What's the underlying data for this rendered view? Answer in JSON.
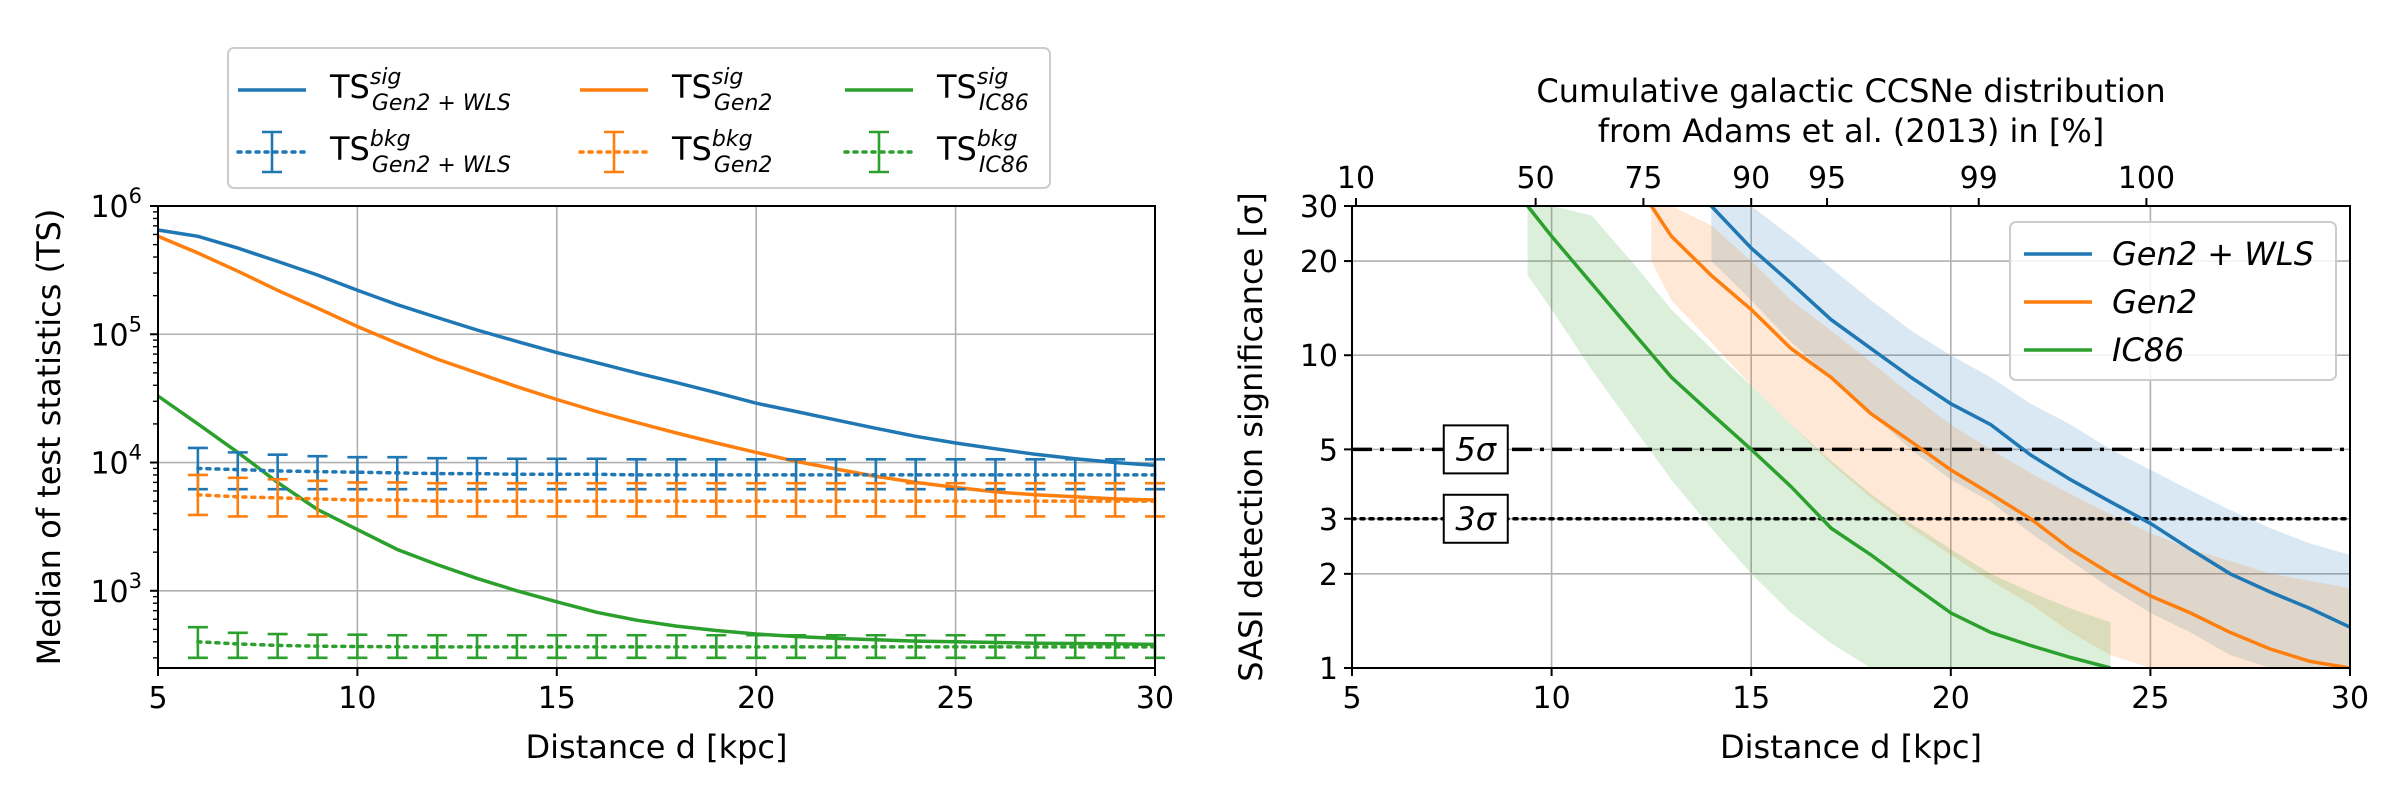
{
  "chart_data": [
    {
      "type": "line",
      "xlabel": "Distance d [kpc]",
      "ylabel": "Median of test statistics (TS)",
      "xlim": [
        5,
        30
      ],
      "ylim": [
        250,
        1000000
      ],
      "yscale": "log",
      "grid": true,
      "legend_position": "top, above plot, 3 columns",
      "x_ticks": [
        5,
        10,
        15,
        20,
        25,
        30
      ],
      "y_ticks": [
        {
          "value": 1000,
          "base": "10",
          "exp": "3"
        },
        {
          "value": 10000,
          "base": "10",
          "exp": "4"
        },
        {
          "value": 100000,
          "base": "10",
          "exp": "5"
        },
        {
          "value": 1000000,
          "base": "10",
          "exp": "6"
        }
      ],
      "x": [
        5,
        10,
        15,
        20,
        25,
        30
      ],
      "series": [
        {
          "name": "TS sig Gen2+WLS",
          "legend": {
            "main": "TS",
            "sup": "sig",
            "sub": "Gen2 + WLS"
          },
          "style": "solid",
          "color": "#1f77b4",
          "x": [
            5,
            6,
            7,
            8,
            9,
            10,
            11,
            12,
            13,
            14,
            15,
            16,
            17,
            18,
            19,
            20,
            21,
            22,
            23,
            24,
            25,
            26,
            27,
            28,
            29,
            30
          ],
          "values": [
            650000,
            580000,
            470000,
            370000,
            290000,
            220000,
            170000,
            135000,
            108000,
            88000,
            72000,
            60000,
            50000,
            42000,
            35000,
            29000,
            25000,
            21500,
            18500,
            16000,
            14200,
            12800,
            11600,
            10700,
            10000,
            9500
          ]
        },
        {
          "name": "TS sig Gen2",
          "legend": {
            "main": "TS",
            "sup": "sig",
            "sub": "Gen2"
          },
          "style": "solid",
          "color": "#ff7f0e",
          "x": [
            5,
            6,
            7,
            8,
            9,
            10,
            11,
            12,
            13,
            14,
            15,
            16,
            17,
            18,
            19,
            20,
            21,
            22,
            23,
            24,
            25,
            26,
            27,
            28,
            29,
            30
          ],
          "values": [
            580000,
            430000,
            310000,
            220000,
            160000,
            115000,
            85000,
            64000,
            50000,
            39000,
            31000,
            25000,
            20500,
            17000,
            14200,
            12000,
            10200,
            8900,
            7800,
            7000,
            6400,
            5900,
            5600,
            5400,
            5200,
            5100
          ]
        },
        {
          "name": "TS sig IC86",
          "legend": {
            "main": "TS",
            "sup": "sig",
            "sub": "IC86"
          },
          "style": "solid",
          "color": "#2ca02c",
          "x": [
            5,
            6,
            7,
            8,
            9,
            10,
            11,
            12,
            13,
            14,
            15,
            16,
            17,
            18,
            19,
            20,
            21,
            22,
            23,
            24,
            25,
            26,
            27,
            28,
            29,
            30
          ],
          "values": [
            33000,
            20000,
            12000,
            7000,
            4300,
            3000,
            2100,
            1600,
            1250,
            1000,
            820,
            680,
            590,
            530,
            490,
            460,
            440,
            425,
            415,
            405,
            400,
            395,
            390,
            388,
            385,
            382
          ]
        },
        {
          "name": "TS bkg Gen2+WLS",
          "legend": {
            "main": "TS",
            "sup": "bkg",
            "sub": "Gen2 + WLS"
          },
          "style": "dotted",
          "errorbars": true,
          "color": "#1f77b4",
          "x": [
            6,
            7,
            8,
            9,
            10,
            11,
            12,
            13,
            14,
            15,
            16,
            17,
            18,
            19,
            20,
            21,
            22,
            23,
            24,
            25,
            26,
            27,
            28,
            29,
            30
          ],
          "values": [
            9000,
            8800,
            8600,
            8500,
            8400,
            8300,
            8200,
            8200,
            8100,
            8100,
            8100,
            8000,
            8000,
            8000,
            8000,
            8000,
            8000,
            8000,
            8000,
            8000,
            8000,
            8000,
            8000,
            8000,
            8000
          ],
          "err_low": [
            6200,
            6200,
            6200,
            6200,
            6200,
            6200,
            6200,
            6200,
            6200,
            6200,
            6200,
            6200,
            6200,
            6200,
            6200,
            6200,
            6200,
            6200,
            6200,
            6200,
            6200,
            6200,
            6200,
            6200,
            6200
          ],
          "err_high": [
            13000,
            12000,
            11500,
            11200,
            11000,
            11000,
            10800,
            10800,
            10700,
            10700,
            10700,
            10600,
            10600,
            10600,
            10600,
            10600,
            10600,
            10600,
            10600,
            10600,
            10600,
            10600,
            10600,
            10600,
            10600
          ]
        },
        {
          "name": "TS bkg Gen2",
          "legend": {
            "main": "TS",
            "sup": "bkg",
            "sub": "Gen2"
          },
          "style": "dotted",
          "errorbars": true,
          "color": "#ff7f0e",
          "x": [
            6,
            7,
            8,
            9,
            10,
            11,
            12,
            13,
            14,
            15,
            16,
            17,
            18,
            19,
            20,
            21,
            22,
            23,
            24,
            25,
            26,
            27,
            28,
            29,
            30
          ],
          "values": [
            5600,
            5400,
            5300,
            5200,
            5100,
            5100,
            5000,
            5000,
            5000,
            5000,
            5000,
            5000,
            5000,
            5000,
            5000,
            5000,
            5000,
            5000,
            5000,
            5000,
            5000,
            5000,
            5000,
            5000,
            5000
          ],
          "err_low": [
            3900,
            3800,
            3800,
            3800,
            3800,
            3800,
            3800,
            3800,
            3800,
            3800,
            3800,
            3800,
            3800,
            3800,
            3800,
            3800,
            3800,
            3800,
            3800,
            3800,
            3800,
            3800,
            3800,
            3800,
            3800
          ],
          "err_high": [
            8000,
            7600,
            7400,
            7200,
            7000,
            7000,
            6900,
            6900,
            6900,
            6900,
            6900,
            6900,
            6900,
            6900,
            6900,
            6900,
            6900,
            6900,
            6900,
            6900,
            6900,
            6900,
            6900,
            6900,
            6900
          ]
        },
        {
          "name": "TS bkg IC86",
          "legend": {
            "main": "TS",
            "sup": "bkg",
            "sub": "IC86"
          },
          "style": "dotted",
          "errorbars": true,
          "color": "#2ca02c",
          "x": [
            6,
            7,
            8,
            9,
            10,
            11,
            12,
            13,
            14,
            15,
            16,
            17,
            18,
            19,
            20,
            21,
            22,
            23,
            24,
            25,
            26,
            27,
            28,
            29,
            30
          ],
          "values": [
            400,
            385,
            375,
            370,
            368,
            366,
            365,
            365,
            365,
            365,
            365,
            365,
            365,
            365,
            365,
            365,
            365,
            365,
            365,
            365,
            365,
            365,
            365,
            365,
            365
          ],
          "err_low": [
            300,
            300,
            300,
            300,
            300,
            300,
            300,
            300,
            300,
            300,
            300,
            300,
            300,
            300,
            300,
            300,
            300,
            300,
            300,
            300,
            300,
            300,
            300,
            300,
            300
          ],
          "err_high": [
            520,
            470,
            460,
            455,
            455,
            450,
            450,
            450,
            450,
            450,
            450,
            450,
            450,
            450,
            450,
            450,
            450,
            450,
            450,
            450,
            450,
            450,
            450,
            450,
            450
          ]
        }
      ]
    },
    {
      "type": "line",
      "xlabel": "Distance d [kpc]",
      "ylabel": "SASI detection significance [σ]",
      "top_axis_label_line1": "Cumulative galactic CCSNe distribution",
      "top_axis_label_line2": "from Adams et al. (2013) in [%]",
      "xlim": [
        5,
        30
      ],
      "ylim": [
        1,
        30
      ],
      "yscale": "log",
      "grid": true,
      "legend_position": "top-right",
      "x_ticks": [
        5,
        10,
        15,
        20,
        25,
        30
      ],
      "y_ticks": [
        1,
        2,
        3,
        5,
        10,
        20,
        30
      ],
      "top_ticks": [
        {
          "label": "10",
          "x": 5.1
        },
        {
          "label": "50",
          "x": 9.6
        },
        {
          "label": "75",
          "x": 12.3
        },
        {
          "label": "90",
          "x": 15.0
        },
        {
          "label": "95",
          "x": 16.9
        },
        {
          "label": "99",
          "x": 20.7
        },
        {
          "label": "100",
          "x": 24.9
        }
      ],
      "hlines": [
        {
          "y": 5,
          "label": "5σ",
          "style": "dashdot"
        },
        {
          "y": 3,
          "label": "3σ",
          "style": "dotted"
        }
      ],
      "series": [
        {
          "name": "Gen2+WLS",
          "legend_label": "Gen2 + WLS",
          "color": "#1f77b4",
          "x": [
            14,
            15,
            16,
            17,
            18,
            19,
            20,
            21,
            22,
            23,
            24,
            25,
            26,
            27,
            28,
            29,
            30
          ],
          "values": [
            30,
            22,
            17,
            13,
            10.5,
            8.5,
            7,
            6,
            4.8,
            4,
            3.4,
            2.9,
            2.4,
            2.0,
            1.75,
            1.55,
            1.35
          ],
          "band_low": [
            20,
            15,
            11,
            8.5,
            6.5,
            5,
            4,
            3.4,
            2.7,
            2.2,
            1.8,
            1.5,
            1.3,
            1.1,
            1,
            1,
            1
          ],
          "band_high": [
            30,
            30,
            24,
            19,
            15,
            12,
            10,
            8.5,
            7,
            6,
            5,
            4.3,
            3.7,
            3.2,
            2.8,
            2.5,
            2.3
          ]
        },
        {
          "name": "Gen2",
          "legend_label": "Gen2",
          "color": "#ff7f0e",
          "x": [
            12.5,
            13,
            14,
            15,
            16,
            17,
            18,
            19,
            20,
            21,
            22,
            23,
            24,
            25,
            26,
            27,
            28,
            29,
            30
          ],
          "values": [
            30,
            24,
            18,
            14,
            10.5,
            8.5,
            6.5,
            5.3,
            4.3,
            3.6,
            3.0,
            2.4,
            2.0,
            1.7,
            1.5,
            1.3,
            1.15,
            1.05,
            1.0
          ],
          "band_low": [
            20,
            15,
            11,
            8,
            6,
            4.5,
            3.5,
            2.8,
            2.3,
            1.9,
            1.6,
            1.3,
            1.1,
            1,
            1,
            1,
            1,
            1,
            1
          ],
          "band_high": [
            30,
            30,
            26,
            20,
            15,
            12,
            9.5,
            7.5,
            6,
            5,
            4.2,
            3.6,
            3.1,
            2.7,
            2.4,
            2.2,
            2.0,
            1.9,
            1.8
          ]
        },
        {
          "name": "IC86",
          "legend_label": "IC86",
          "color": "#2ca02c",
          "x": [
            9.4,
            10,
            11,
            12,
            13,
            14,
            15,
            16,
            17,
            18,
            19,
            20,
            21,
            22,
            23,
            24
          ],
          "values": [
            30,
            24,
            17,
            12,
            8.5,
            6.5,
            5,
            3.8,
            2.8,
            2.3,
            1.85,
            1.5,
            1.3,
            1.18,
            1.08,
            1.0
          ],
          "band_low": [
            18,
            14,
            9,
            6,
            4,
            2.8,
            2,
            1.5,
            1.2,
            1,
            1,
            1,
            1,
            1,
            1,
            1
          ],
          "band_high": [
            30,
            30,
            28,
            20,
            14,
            10.5,
            8,
            6,
            4.6,
            3.6,
            2.9,
            2.4,
            2.0,
            1.75,
            1.55,
            1.4
          ]
        }
      ]
    }
  ]
}
